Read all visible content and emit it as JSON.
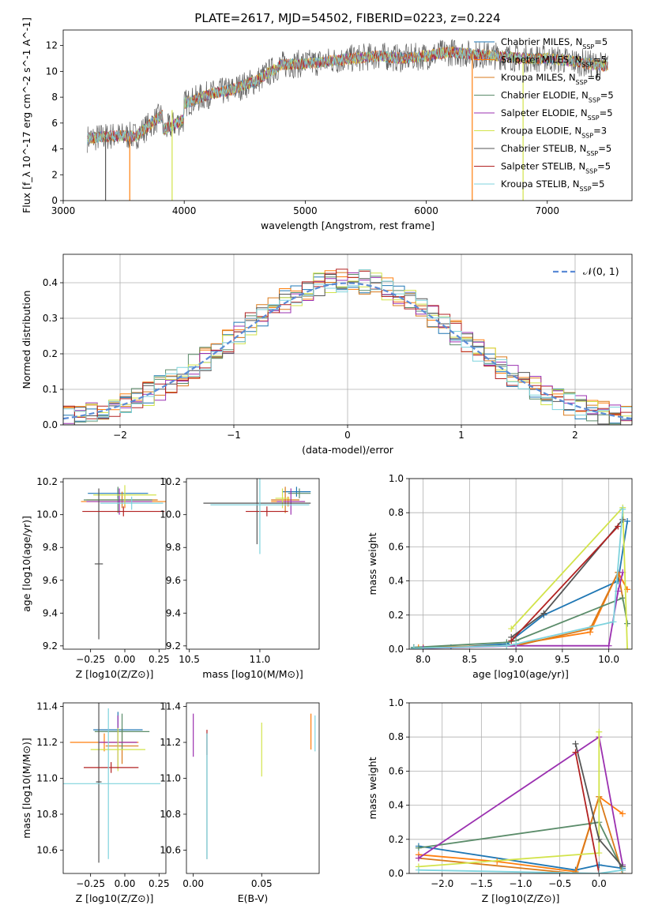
{
  "title": "PLATE=2617, MJD=54502, FIBERID=0223, z=0.224",
  "models": [
    {
      "label": "Chabrier MILES, N",
      "nssp": "=5",
      "color": "#1f77b4"
    },
    {
      "label": "Salpeter MILES, N",
      "nssp": "=5",
      "color": "#ff7f0e"
    },
    {
      "label": "Kroupa MILES, N",
      "nssp": "=6",
      "color": "#d97a1b"
    },
    {
      "label": "Chabrier ELODIE, N",
      "nssp": "=5",
      "color": "#5b8c6a"
    },
    {
      "label": "Salpeter ELODIE, N",
      "nssp": "=5",
      "color": "#9b30b0"
    },
    {
      "label": "Kroupa ELODIE, N",
      "nssp": "=3",
      "color": "#d2e34a"
    },
    {
      "label": "Chabrier STELIB, N",
      "nssp": "=5",
      "color": "#555555"
    },
    {
      "label": "Salpeter STELIB, N",
      "nssp": "=5",
      "color": "#b22222"
    },
    {
      "label": "Kroupa STELIB, N",
      "nssp": "=5",
      "color": "#7fd3dd"
    }
  ],
  "legend_subscript": "SSP",
  "chart_data": [
    {
      "id": "spectrum",
      "type": "line",
      "xlabel": "wavelength [Angstrom, rest frame]",
      "ylabel": "Flux [f_λ 10^-17 erg cm^-2 s^-1 A^-1]",
      "xlim": [
        3000,
        7700
      ],
      "ylim": [
        0,
        13.2
      ],
      "xticks": [
        3000,
        4000,
        5000,
        6000,
        7000
      ],
      "yticks": [
        0,
        2,
        4,
        6,
        8,
        10,
        12
      ],
      "x_range_data": [
        3200,
        7500
      ],
      "continuum_points": [
        [
          3200,
          4.8
        ],
        [
          3400,
          5.0
        ],
        [
          3600,
          5.0
        ],
        [
          3800,
          6.5
        ],
        [
          4000,
          7.5
        ],
        [
          4200,
          8.2
        ],
        [
          4400,
          8.6
        ],
        [
          4600,
          9.3
        ],
        [
          4800,
          10.5
        ],
        [
          5000,
          10.6
        ],
        [
          5200,
          10.8
        ],
        [
          5400,
          11.0
        ],
        [
          5600,
          11.2
        ],
        [
          5800,
          11.0
        ],
        [
          6000,
          11.2
        ],
        [
          6200,
          11.5
        ],
        [
          6400,
          11.3
        ],
        [
          6600,
          11.2
        ],
        [
          6800,
          11.0
        ],
        [
          7000,
          11.0
        ],
        [
          7200,
          10.8
        ],
        [
          7400,
          10.5
        ],
        [
          7500,
          10.4
        ]
      ],
      "grid": false
    },
    {
      "id": "residuals",
      "type": "step",
      "xlabel": "(data-model)/error",
      "ylabel": "Normed distribution",
      "xlim": [
        -2.5,
        2.5
      ],
      "ylim": [
        0,
        0.48
      ],
      "xticks": [
        -2,
        -1,
        0,
        1,
        2
      ],
      "yticks": [
        0.0,
        0.1,
        0.2,
        0.3,
        0.4
      ],
      "bin_width": 0.1,
      "grid": true,
      "legend": "𝒩(0, 1)",
      "gaussian": {
        "mu": 0,
        "sigma": 1
      }
    },
    {
      "id": "age_Z",
      "type": "errorbar",
      "xlabel": "Z [log10(Z/Z⊙)]",
      "ylabel": "age  [log10(age/yr)]",
      "xlim": [
        -0.45,
        0.3
      ],
      "ylim": [
        9.18,
        10.22
      ],
      "xticks": [
        -0.25,
        0.0,
        0.25
      ],
      "yticks": [
        9.2,
        9.4,
        9.6,
        9.8,
        10.0,
        10.2
      ],
      "points": [
        {
          "x": -0.05,
          "xerr": 0.22,
          "y": 10.13,
          "yerr": 0.03,
          "m": 0
        },
        {
          "x": 0.0,
          "xerr": 0.32,
          "y": 10.08,
          "yerr": 0.04,
          "m": 1
        },
        {
          "x": -0.02,
          "xerr": 0.26,
          "y": 10.09,
          "yerr": 0.05,
          "m": 2
        },
        {
          "x": -0.05,
          "xerr": 0.25,
          "y": 10.09,
          "yerr": 0.08,
          "m": 3
        },
        {
          "x": -0.04,
          "xerr": 0.24,
          "y": 10.08,
          "yerr": 0.08,
          "m": 4
        },
        {
          "x": 0.0,
          "xerr": 0.23,
          "y": 10.12,
          "yerr": 0.06,
          "m": 5
        },
        {
          "x": -0.19,
          "xerr": 0.03,
          "y": 9.7,
          "yerr": 0.46,
          "m": 6
        },
        {
          "x": -0.01,
          "xerr": 0.3,
          "y": 10.02,
          "yerr": 0.03,
          "m": 7
        },
        {
          "x": 0.05,
          "xerr": 0.23,
          "y": 10.07,
          "yerr": 0.04,
          "m": 8
        }
      ]
    },
    {
      "id": "age_mass",
      "type": "errorbar",
      "xlabel": "mass [log10(M/M⊙)]",
      "ylabel": "",
      "xlim": [
        10.48,
        11.42
      ],
      "ylim": [
        9.18,
        10.22
      ],
      "xticks": [
        10.5,
        11.0
      ],
      "yticks": [
        9.2,
        9.4,
        9.6,
        9.8,
        10.0,
        10.2
      ],
      "points": [
        {
          "x": 11.26,
          "xerr": 0.1,
          "y": 10.14,
          "yerr": 0.03,
          "m": 0
        },
        {
          "x": 11.2,
          "xerr": 0.12,
          "y": 10.08,
          "yerr": 0.03,
          "m": 1
        },
        {
          "x": 11.18,
          "xerr": 0.1,
          "y": 10.09,
          "yerr": 0.08,
          "m": 2
        },
        {
          "x": 11.28,
          "xerr": 0.08,
          "y": 10.13,
          "yerr": 0.03,
          "m": 3
        },
        {
          "x": 11.22,
          "xerr": 0.1,
          "y": 10.08,
          "yerr": 0.08,
          "m": 4
        },
        {
          "x": 11.16,
          "xerr": 0.05,
          "y": 10.1,
          "yerr": 0.06,
          "m": 5
        },
        {
          "x": 10.98,
          "xerr": 0.38,
          "y": 10.07,
          "yerr": 0.25,
          "m": 6
        },
        {
          "x": 11.05,
          "xerr": 0.15,
          "y": 10.02,
          "yerr": 0.03,
          "m": 7
        },
        {
          "x": 11.0,
          "xerr": 0.35,
          "y": 10.06,
          "yerr": 0.3,
          "m": 8
        }
      ]
    },
    {
      "id": "weight_age",
      "type": "line",
      "xlabel": "age  [log10(age/yr)]",
      "ylabel": "mass weight",
      "xlim": [
        7.85,
        10.25
      ],
      "ylim": [
        0,
        1
      ],
      "xticks": [
        8.0,
        8.5,
        9.0,
        9.5,
        10.0
      ],
      "yticks": [
        0.0,
        0.2,
        0.4,
        0.6,
        0.8,
        1.0
      ],
      "grid": true,
      "series": [
        {
          "m": 0,
          "x": [
            7.9,
            8.3,
            8.9,
            9.3,
            10.1,
            10.2
          ],
          "y": [
            0.01,
            0.01,
            0.03,
            0.2,
            0.4,
            0.75
          ]
        },
        {
          "m": 1,
          "x": [
            7.95,
            8.9,
            9.8,
            10.1,
            10.2
          ],
          "y": [
            0.01,
            0.02,
            0.1,
            0.45,
            0.35
          ]
        },
        {
          "m": 2,
          "x": [
            8.0,
            9.0,
            9.8,
            10.1,
            10.15
          ],
          "y": [
            0.01,
            0.02,
            0.12,
            0.45,
            0.3
          ]
        },
        {
          "m": 3,
          "x": [
            7.9,
            8.9,
            9.0,
            10.15,
            10.2
          ],
          "y": [
            0.01,
            0.04,
            0.05,
            0.3,
            0.15
          ]
        },
        {
          "m": 4,
          "x": [
            8.0,
            9.0,
            10.0,
            10.1,
            10.15
          ],
          "y": [
            0.005,
            0.02,
            0.02,
            0.34,
            0.45
          ]
        },
        {
          "m": 5,
          "x": [
            8.95,
            10.15,
            10.2
          ],
          "y": [
            0.12,
            0.83,
            0.0
          ]
        },
        {
          "m": 6,
          "x": [
            8.95,
            9.3,
            10.15
          ],
          "y": [
            0.07,
            0.21,
            0.76
          ]
        },
        {
          "m": 7,
          "x": [
            8.95,
            10.1
          ],
          "y": [
            0.05,
            0.72
          ]
        },
        {
          "m": 8,
          "x": [
            7.9,
            8.9,
            9.0,
            10.05,
            10.15
          ],
          "y": [
            0.005,
            0.02,
            0.03,
            0.16,
            0.82
          ]
        }
      ]
    },
    {
      "id": "mass_Z",
      "type": "errorbar",
      "xlabel": "Z [log10(Z/Z⊙)]",
      "ylabel": "mass [log10(M/M⊙)]",
      "xlim": [
        -0.45,
        0.3
      ],
      "ylim": [
        10.47,
        11.42
      ],
      "xticks": [
        -0.25,
        0.0,
        0.25
      ],
      "yticks": [
        10.6,
        10.8,
        11.0,
        11.2,
        11.4
      ],
      "points": [
        {
          "x": -0.05,
          "xerr": 0.18,
          "y": 11.27,
          "yerr": 0.1,
          "m": 0
        },
        {
          "x": -0.15,
          "xerr": 0.25,
          "y": 11.2,
          "yerr": 0.05,
          "m": 1
        },
        {
          "x": -0.02,
          "xerr": 0.12,
          "y": 11.18,
          "yerr": 0.1,
          "m": 2
        },
        {
          "x": -0.02,
          "xerr": 0.2,
          "y": 11.26,
          "yerr": 0.1,
          "m": 3
        },
        {
          "x": -0.05,
          "xerr": 0.14,
          "y": 11.2,
          "yerr": 0.15,
          "m": 4
        },
        {
          "x": -0.05,
          "xerr": 0.2,
          "y": 11.16,
          "yerr": 0.12,
          "m": 5
        },
        {
          "x": -0.19,
          "xerr": 0.02,
          "y": 10.98,
          "yerr": 0.45,
          "m": 6
        },
        {
          "x": -0.1,
          "xerr": 0.2,
          "y": 11.06,
          "yerr": 0.03,
          "m": 7
        },
        {
          "x": -0.12,
          "xerr": 0.38,
          "y": 10.97,
          "yerr": 0.42,
          "m": 8
        }
      ]
    },
    {
      "id": "mass_ebv",
      "type": "errorbar",
      "xlabel": "E(B-V)",
      "ylabel": "",
      "xlim": [
        -0.005,
        0.092
      ],
      "ylim": [
        10.47,
        11.42
      ],
      "xticks": [
        0.0,
        0.05
      ],
      "yticks": [
        10.6,
        10.8,
        11.0,
        11.2,
        11.4
      ],
      "points": [
        {
          "x": 0.0,
          "xerr": 0,
          "y": 11.24,
          "yerr": 0.12,
          "m": 4
        },
        {
          "x": 0.01,
          "xerr": 0,
          "y": 11.2,
          "yerr": 0.07,
          "m": 7
        },
        {
          "x": 0.01,
          "xerr": 0,
          "y": 10.9,
          "yerr": 0.35,
          "m": 6
        },
        {
          "x": 0.01,
          "xerr": 0,
          "y": 10.9,
          "yerr": 0.35,
          "m": 8
        },
        {
          "x": 0.05,
          "xerr": 0,
          "y": 11.16,
          "yerr": 0.15,
          "m": 5
        },
        {
          "x": 0.086,
          "xerr": 0,
          "y": 11.26,
          "yerr": 0.1,
          "m": 1
        },
        {
          "x": 0.089,
          "xerr": 0,
          "y": 11.25,
          "yerr": 0.1,
          "m": 8
        }
      ]
    },
    {
      "id": "weight_Z",
      "type": "line",
      "xlabel": "Z [log10(Z/Z⊙)]",
      "ylabel": "mass weight",
      "xlim": [
        -2.42,
        0.42
      ],
      "ylim": [
        0,
        1
      ],
      "xticks": [
        -2.0,
        -1.5,
        -1.0,
        -0.5,
        0.0
      ],
      "yticks": [
        0.0,
        0.2,
        0.4,
        0.6,
        0.8,
        1.0
      ],
      "grid": true,
      "series": [
        {
          "m": 0,
          "x": [
            -2.3,
            -0.3,
            0.0,
            0.3
          ],
          "y": [
            0.16,
            0.02,
            0.05,
            0.03
          ]
        },
        {
          "m": 1,
          "x": [
            -2.3,
            -1.3,
            -0.3,
            0.0,
            0.3
          ],
          "y": [
            0.11,
            0.07,
            0.01,
            0.45,
            0.35
          ]
        },
        {
          "m": 2,
          "x": [
            -2.3,
            -0.3,
            0.0,
            0.3
          ],
          "y": [
            0.09,
            0.0,
            0.45,
            0.0
          ]
        },
        {
          "m": 3,
          "x": [
            -2.3,
            0.0,
            0.3
          ],
          "y": [
            0.15,
            0.3,
            0.02
          ]
        },
        {
          "m": 4,
          "x": [
            -2.3,
            0.0,
            0.3
          ],
          "y": [
            0.09,
            0.8,
            0.05
          ]
        },
        {
          "m": 5,
          "x": [
            -2.3,
            0.0,
            0.0
          ],
          "y": [
            0.04,
            0.12,
            0.83
          ]
        },
        {
          "m": 6,
          "x": [
            -0.3,
            0.0,
            0.3
          ],
          "y": [
            0.76,
            0.2,
            0.04
          ]
        },
        {
          "m": 7,
          "x": [
            -0.3,
            0.0
          ],
          "y": [
            0.71,
            0.0
          ]
        },
        {
          "m": 8,
          "x": [
            -2.3,
            0.0,
            0.3
          ],
          "y": [
            0.02,
            0.0,
            0.02
          ]
        }
      ]
    }
  ]
}
